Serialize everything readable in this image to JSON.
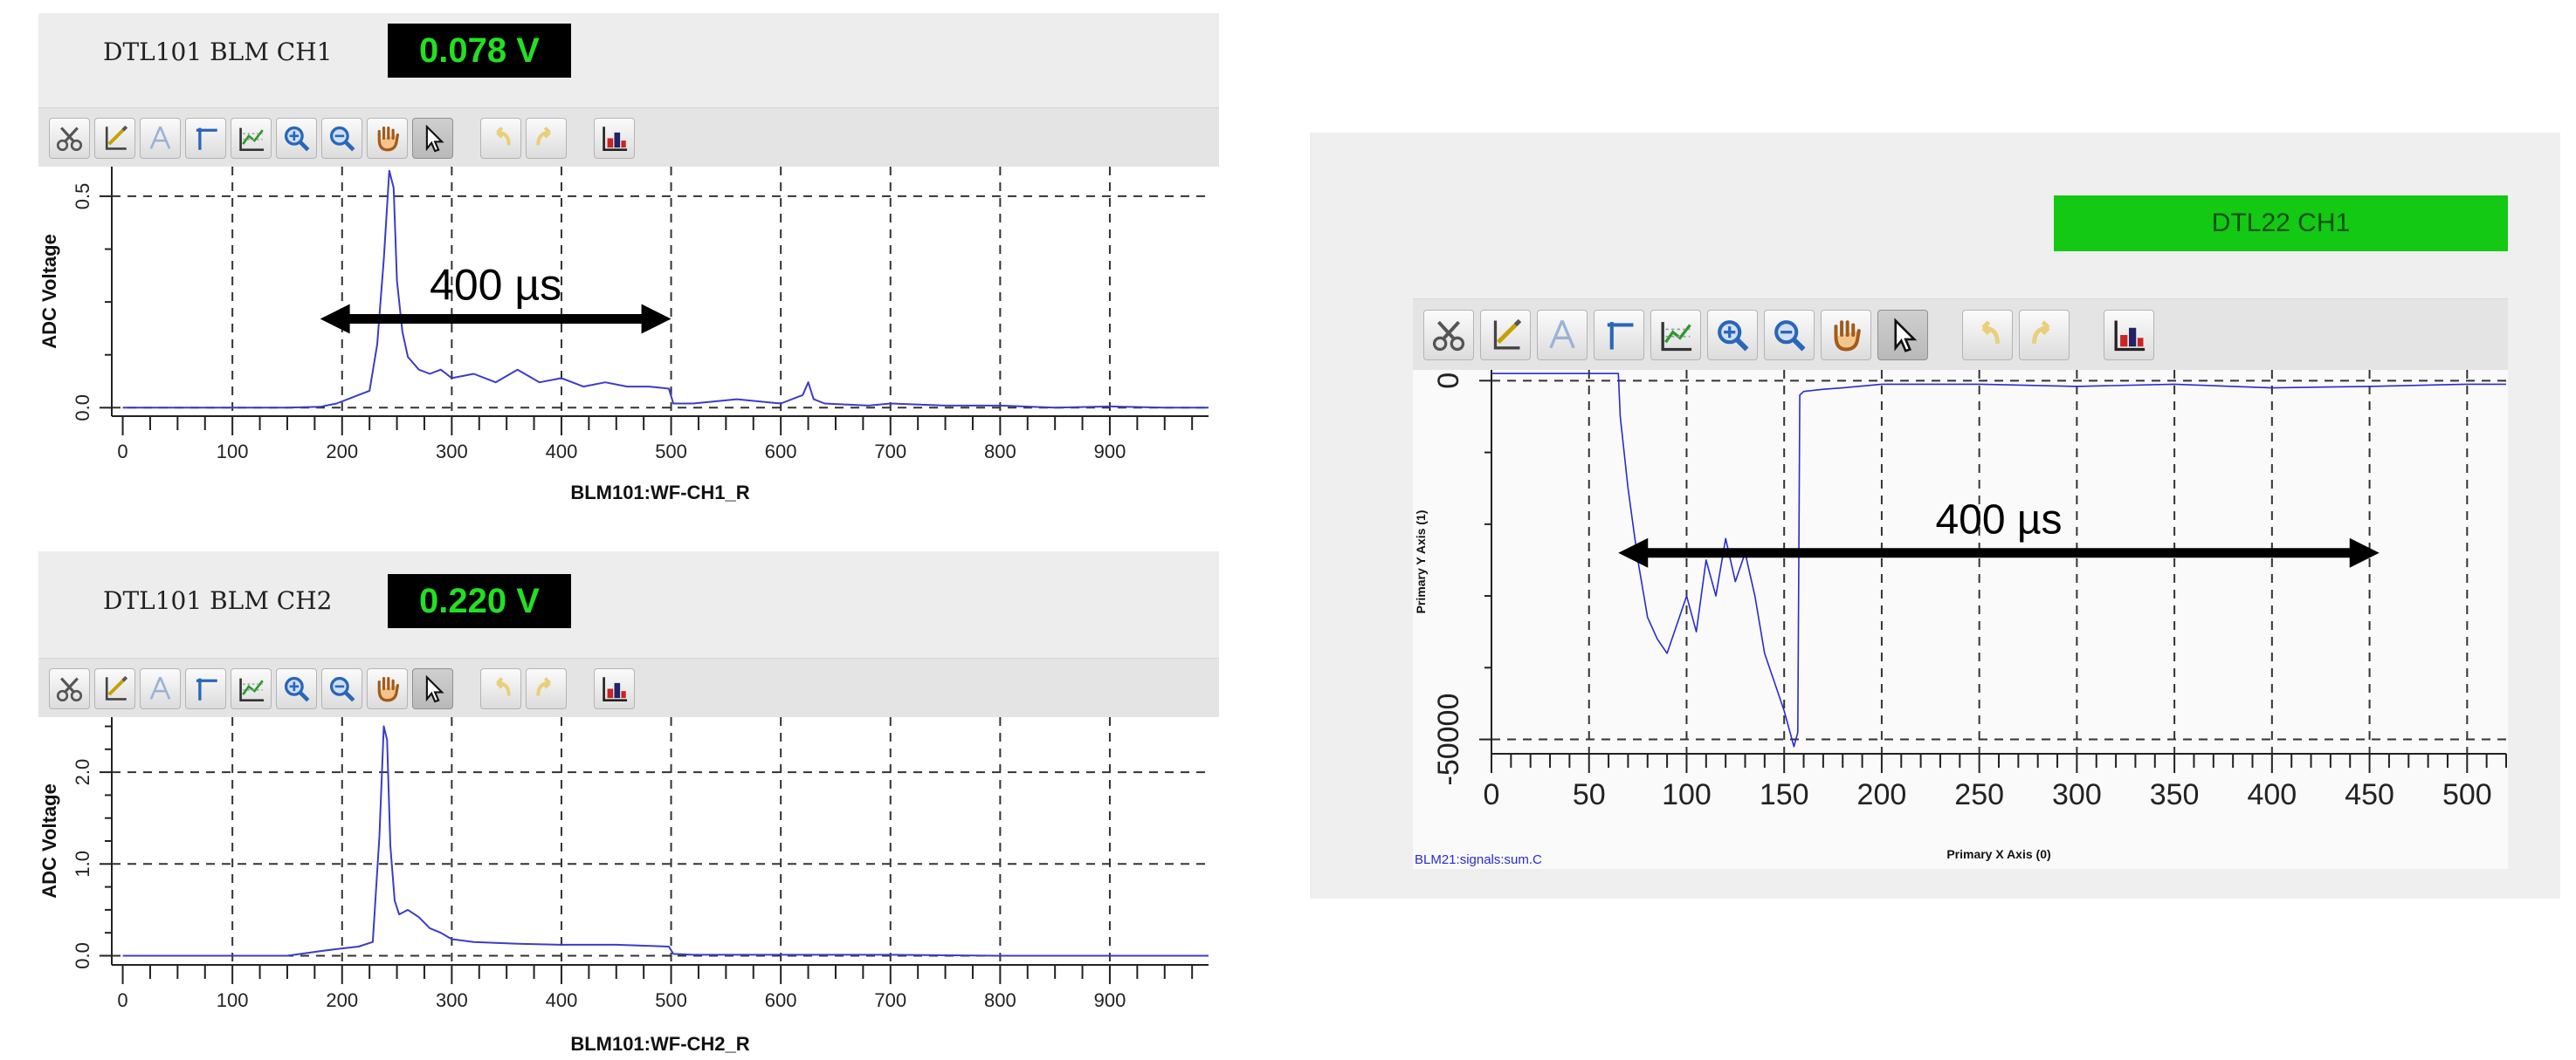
{
  "panels": [
    {
      "label": "DTL101 BLM CH1",
      "readout": "0.078 V",
      "chart_data": {
        "type": "line",
        "xlabel": "BLM101:WF-CH1_R",
        "ylabel": "ADC Voltage",
        "xlim": [
          -10,
          990
        ],
        "ylim": [
          -0.02,
          0.57
        ],
        "xticks": [
          "0",
          "100",
          "200",
          "300",
          "400",
          "500",
          "600",
          "700",
          "800",
          "900"
        ],
        "yticks": [
          "0.0",
          "0.5"
        ],
        "grid": true,
        "series": [
          {
            "x": [
              0,
              50,
              100,
              150,
              180,
              195,
              210,
              225,
              232,
              238,
              243,
              247,
              250,
              255,
              260,
              270,
              280,
              290,
              300,
              320,
              340,
              360,
              380,
              400,
              420,
              440,
              460,
              480,
              498,
              502,
              520,
              560,
              600,
              620,
              625,
              630,
              640,
              680,
              700,
              750,
              800,
              850,
              900,
              950,
              990
            ],
            "y": [
              0.0,
              0.0,
              0.0,
              0.0,
              0.002,
              0.01,
              0.025,
              0.04,
              0.15,
              0.35,
              0.56,
              0.52,
              0.3,
              0.18,
              0.12,
              0.09,
              0.08,
              0.09,
              0.07,
              0.08,
              0.06,
              0.09,
              0.06,
              0.07,
              0.05,
              0.06,
              0.05,
              0.05,
              0.045,
              0.01,
              0.01,
              0.02,
              0.01,
              0.03,
              0.06,
              0.02,
              0.01,
              0.005,
              0.01,
              0.005,
              0.005,
              0.0,
              0.003,
              0.0,
              0.0
            ]
          }
        ],
        "annotation": {
          "text": "400 µs",
          "from": 180,
          "to": 500,
          "y": 0.21
        }
      }
    },
    {
      "label": "DTL101 BLM CH2",
      "readout": "0.220 V",
      "chart_data": {
        "type": "line",
        "xlabel": "BLM101:WF-CH2_R",
        "ylabel": "ADC Voltage",
        "xlim": [
          -10,
          990
        ],
        "ylim": [
          -0.1,
          2.6
        ],
        "xticks": [
          "0",
          "100",
          "200",
          "300",
          "400",
          "500",
          "600",
          "700",
          "800",
          "900"
        ],
        "yticks": [
          "0.0",
          "1.0",
          "2.0"
        ],
        "grid": true,
        "series": [
          {
            "x": [
              0,
              50,
              100,
              150,
              180,
              200,
              215,
              228,
              234,
              238,
              241,
              244,
              248,
              252,
              260,
              270,
              280,
              290,
              300,
              320,
              340,
              360,
              400,
              450,
              498,
              502,
              520,
              600,
              700,
              800,
              900,
              990
            ],
            "y": [
              0.0,
              0.0,
              0.0,
              0.0,
              0.05,
              0.08,
              0.1,
              0.15,
              1.3,
              2.5,
              2.35,
              1.2,
              0.6,
              0.45,
              0.5,
              0.42,
              0.3,
              0.25,
              0.18,
              0.15,
              0.14,
              0.13,
              0.12,
              0.12,
              0.1,
              0.02,
              0.01,
              0.01,
              0.01,
              0.0,
              0.0,
              0.0
            ]
          }
        ]
      }
    }
  ],
  "right_panel": {
    "title": "DTL22 CH1",
    "legend": "BLM21:signals:sum.C",
    "chart_data": {
      "type": "line",
      "xlabel": "Primary X Axis (0)",
      "ylabel": "Primary Y Axis (1)",
      "xlim": [
        0,
        520
      ],
      "ylim": [
        -52000,
        1500
      ],
      "xticks": [
        "0",
        "50",
        "100",
        "150",
        "200",
        "250",
        "300",
        "350",
        "400",
        "450",
        "500"
      ],
      "yticks": [
        "0",
        "-50000"
      ],
      "grid": true,
      "series": [
        {
          "x": [
            0,
            65,
            66,
            70,
            75,
            80,
            85,
            90,
            95,
            100,
            105,
            110,
            115,
            120,
            125,
            130,
            135,
            140,
            145,
            150,
            155,
            157,
            158,
            160,
            170,
            180,
            200,
            250,
            300,
            350,
            400,
            450,
            500,
            520
          ],
          "y": [
            1000,
            1000,
            -5000,
            -15000,
            -25000,
            -33000,
            -36000,
            -38000,
            -34000,
            -30000,
            -35000,
            -25000,
            -30000,
            -22000,
            -28000,
            -24000,
            -30000,
            -38000,
            -42000,
            -46000,
            -51000,
            -49000,
            -2000,
            -1500,
            -1200,
            -1000,
            -500,
            -500,
            -800,
            -500,
            -1000,
            -800,
            -500,
            -500
          ]
        }
      ],
      "annotation": {
        "text": "400 µs",
        "from": 65,
        "to": 455,
        "y": -24000
      }
    }
  },
  "toolbar_icons": [
    "scissors-icon",
    "axis-edit-icon",
    "axis-icon",
    "crosshair-icon",
    "chart-config-icon",
    "zoom-in-icon",
    "zoom-out-icon",
    "pan-hand-icon",
    "pointer-icon",
    "undo-icon",
    "redo-icon",
    "chart-export-icon"
  ]
}
